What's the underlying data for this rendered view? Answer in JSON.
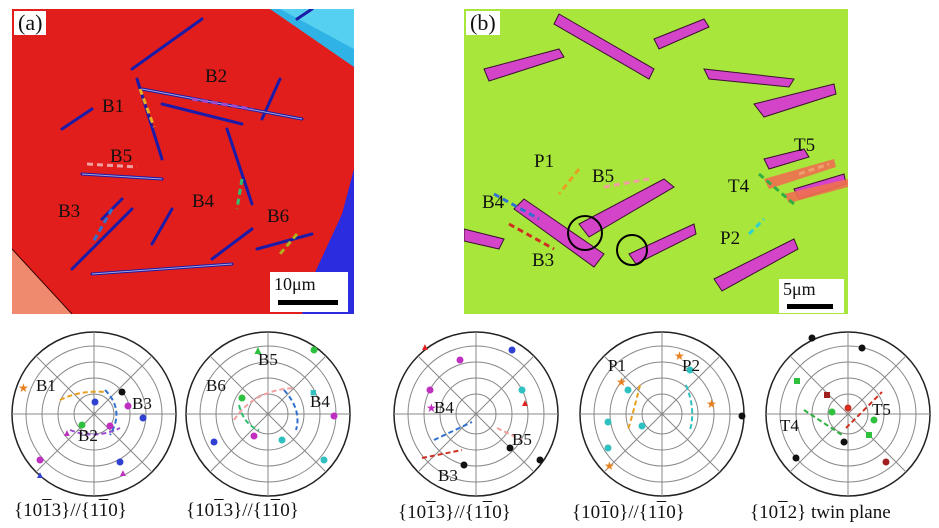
{
  "panel_a": {
    "label": "(a)",
    "bands": [
      "B1",
      "B2",
      "B3",
      "B4",
      "B5",
      "B6"
    ],
    "scale_bar": "10μm"
  },
  "panel_b": {
    "label": "(b)",
    "bands": [
      "P1",
      "B5",
      "B4",
      "B3",
      "T4",
      "T5",
      "P2"
    ],
    "scale_bar": "5μm"
  },
  "pole_figures": [
    {
      "labels": [
        "B1",
        "B3",
        "B2"
      ],
      "caption": {
        "pre": "{10",
        "bar": "1",
        "mid": "3}//{1",
        "bar2": "1",
        "post": "0}"
      }
    },
    {
      "labels": [
        "B5",
        "B6",
        "B4"
      ],
      "caption": {
        "pre": "{10",
        "bar": "1",
        "mid": "3}//{1",
        "bar2": "1",
        "post": "0}"
      }
    },
    {
      "labels": [
        "B4",
        "B5",
        "B3"
      ],
      "caption": {
        "pre": "{10",
        "bar": "1",
        "mid": "3}//{1",
        "bar2": "1",
        "post": "0}"
      }
    },
    {
      "labels": [
        "P1",
        "P2"
      ],
      "caption": {
        "pre": "{10",
        "bar": "1",
        "mid": "0}//{1",
        "bar2": "1",
        "post": "0}"
      }
    },
    {
      "labels": [
        "T4",
        "T5"
      ],
      "caption": {
        "pre": "{10",
        "bar": "1",
        "mid": "2}",
        "bar2": "",
        "post": " twin plane"
      }
    }
  ],
  "colors": {
    "matrix_a": "#e8201c",
    "matrix_b": "#a6e83a",
    "twin_blue": "#2a2ad0",
    "twin_magenta": "#d040c8"
  }
}
